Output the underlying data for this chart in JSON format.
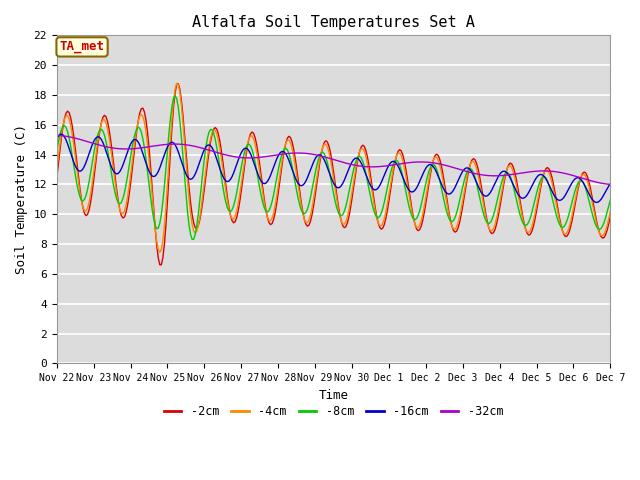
{
  "title": "Alfalfa Soil Temperatures Set A",
  "xlabel": "Time",
  "ylabel": "Soil Temperature (C)",
  "ylim": [
    0,
    22
  ],
  "annotation": "TA_met",
  "annotation_color": "#cc0000",
  "annotation_bg": "#ffffdd",
  "bg_color": "#dcdcdc",
  "line_colors": {
    "-2cm": "#dd0000",
    "-4cm": "#ff8800",
    "-8cm": "#00cc00",
    "-16cm": "#0000cc",
    "-32cm": "#aa00cc"
  },
  "xtick_labels": [
    "Nov 22",
    "Nov 23",
    "Nov 24",
    "Nov 25",
    "Nov 26",
    "Nov 27",
    "Nov 28",
    "Nov 29",
    "Nov 30",
    "Dec 1",
    "Dec 2",
    "Dec 3",
    "Dec 4",
    "Dec 5",
    "Dec 6",
    "Dec 7"
  ],
  "legend_labels": [
    "-2cm",
    "-4cm",
    "-8cm",
    "-16cm",
    "-32cm"
  ]
}
